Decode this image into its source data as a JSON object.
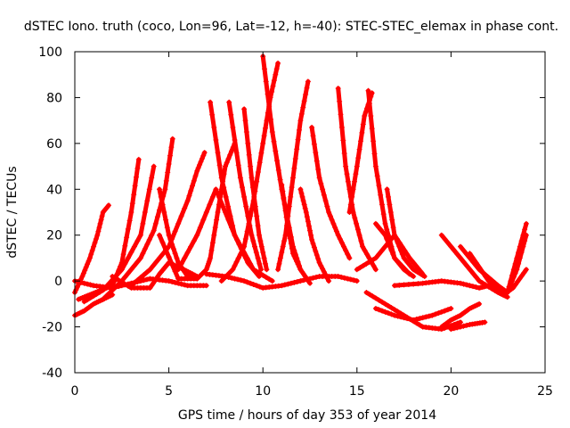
{
  "chart_data": {
    "type": "scatter",
    "title": "dSTEC Iono. truth (coco, Lon=96, Lat=-12, h=-40): STEC-STEC_elemax in phase cont.",
    "xlabel": "GPS time / hours of day 353 of year 2014",
    "ylabel": "dSTEC  / TECUs",
    "xlim": [
      0,
      25
    ],
    "ylim": [
      -40,
      100
    ],
    "x_ticks": [
      0,
      5,
      10,
      15,
      20,
      25
    ],
    "y_ticks": [
      -40,
      -20,
      0,
      20,
      40,
      60,
      80,
      100
    ],
    "grid": false,
    "legend": "none",
    "marker": "plus",
    "series_color": "#ff0000",
    "series": [
      {
        "x": [
          0.0,
          0.4,
          0.8,
          1.2,
          1.5,
          1.8
        ],
        "y": [
          -5,
          2,
          10,
          20,
          30,
          33
        ]
      },
      {
        "x": [
          0.0,
          0.5,
          1.0,
          1.5,
          2.0
        ],
        "y": [
          -15,
          -13,
          -10,
          -8,
          -6
        ]
      },
      {
        "x": [
          0.2,
          0.8,
          1.4,
          2.0,
          2.5,
          3.0,
          3.4
        ],
        "y": [
          -8,
          -6,
          -4,
          -2,
          8,
          30,
          53
        ]
      },
      {
        "x": [
          0.5,
          1.5,
          2.5,
          3.5,
          4.2
        ],
        "y": [
          -9,
          -4,
          5,
          20,
          50
        ]
      },
      {
        "x": [
          1.5,
          2.5,
          3.5,
          4.2,
          4.8,
          5.2
        ],
        "y": [
          -8,
          0,
          10,
          22,
          40,
          62
        ]
      },
      {
        "x": [
          2.0,
          3.0,
          4.0,
          4.5,
          5.0,
          5.8,
          6.5
        ],
        "y": [
          2,
          -3,
          -3,
          3,
          8,
          5,
          2
        ]
      },
      {
        "x": [
          3.0,
          4.0,
          5.0,
          6.0,
          6.5,
          6.9
        ],
        "y": [
          -2,
          5,
          15,
          35,
          48,
          56
        ]
      },
      {
        "x": [
          4.5,
          5.5,
          6.5,
          7.0,
          7.2,
          7.6,
          8.0,
          8.5
        ],
        "y": [
          20,
          1,
          1,
          5,
          10,
          30,
          50,
          60
        ]
      },
      {
        "x": [
          4.5,
          5.0,
          5.5,
          6.0,
          6.5
        ],
        "y": [
          40,
          20,
          8,
          2,
          1
        ]
      },
      {
        "x": [
          5.5,
          6.5,
          7.5,
          8.5,
          9.5,
          10.5
        ],
        "y": [
          5,
          20,
          40,
          20,
          5,
          0
        ]
      },
      {
        "x": [
          7.2,
          7.8,
          8.5,
          9.2,
          9.8
        ],
        "y": [
          78,
          45,
          20,
          8,
          2
        ]
      },
      {
        "x": [
          7.8,
          8.4,
          9.0,
          9.5,
          10.0,
          10.4,
          10.8
        ],
        "y": [
          0,
          5,
          15,
          35,
          60,
          80,
          95
        ]
      },
      {
        "x": [
          8.2,
          8.8,
          9.4,
          9.9
        ],
        "y": [
          78,
          45,
          20,
          5
        ]
      },
      {
        "x": [
          9.0,
          9.4,
          9.8,
          10.2
        ],
        "y": [
          75,
          45,
          20,
          5
        ]
      },
      {
        "x": [
          10.0,
          10.5,
          11.0,
          11.6,
          12.0
        ],
        "y": [
          98,
          65,
          40,
          15,
          5
        ]
      },
      {
        "x": [
          10.8,
          11.2,
          11.6,
          12.0,
          12.4
        ],
        "y": [
          5,
          20,
          45,
          70,
          87
        ]
      },
      {
        "x": [
          11.0,
          11.3,
          11.6,
          12.0,
          12.5
        ],
        "y": [
          42,
          25,
          12,
          5,
          -1
        ]
      },
      {
        "x": [
          12.0,
          12.3,
          12.6,
          13.0,
          13.5
        ],
        "y": [
          40,
          30,
          18,
          8,
          0
        ]
      },
      {
        "x": [
          12.6,
          13.0,
          13.5,
          14.0,
          14.6
        ],
        "y": [
          67,
          45,
          30,
          20,
          10
        ]
      },
      {
        "x": [
          7.0,
          8.0,
          9.0,
          10.0,
          11.0,
          12.0,
          13.0,
          14.0,
          15.0
        ],
        "y": [
          3,
          2,
          0,
          -3,
          -2,
          0,
          2,
          2,
          0
        ]
      },
      {
        "x": [
          14.0,
          14.4,
          14.8,
          15.3,
          16.0
        ],
        "y": [
          84,
          50,
          30,
          15,
          5
        ]
      },
      {
        "x": [
          14.6,
          15.0,
          15.4,
          15.8
        ],
        "y": [
          30,
          50,
          72,
          82
        ]
      },
      {
        "x": [
          15.6,
          16.0,
          16.5,
          17.0,
          17.8
        ],
        "y": [
          83,
          50,
          25,
          10,
          3
        ]
      },
      {
        "x": [
          15.0,
          16.0,
          17.0,
          17.8,
          18.5
        ],
        "y": [
          5,
          10,
          20,
          10,
          3
        ]
      },
      {
        "x": [
          16.0,
          16.5,
          17.0,
          17.5,
          18.0
        ],
        "y": [
          25,
          20,
          10,
          5,
          2
        ]
      },
      {
        "x": [
          16.6,
          17.0,
          17.5,
          18.0,
          18.6
        ],
        "y": [
          40,
          20,
          10,
          5,
          2
        ]
      },
      {
        "x": [
          15.5,
          16.5,
          17.5,
          18.5,
          19.5,
          20.5
        ],
        "y": [
          -5,
          -10,
          -15,
          -20,
          -21,
          -18
        ]
      },
      {
        "x": [
          19.5,
          20.0,
          20.5,
          21.0,
          21.5
        ],
        "y": [
          -20,
          -17,
          -15,
          -12,
          -10
        ]
      },
      {
        "x": [
          20.0,
          21.0,
          21.8
        ],
        "y": [
          -21,
          -19,
          -18
        ]
      },
      {
        "x": [
          16.0,
          17.0,
          18.0,
          19.0,
          20.0
        ],
        "y": [
          -12,
          -15,
          -17,
          -15,
          -12
        ]
      },
      {
        "x": [
          19.5,
          20.5,
          21.5,
          22.5,
          23.0
        ],
        "y": [
          20,
          10,
          0,
          -5,
          -7
        ]
      },
      {
        "x": [
          20.5,
          21.5,
          22.5,
          23.0,
          23.5,
          24.0
        ],
        "y": [
          15,
          5,
          -2,
          -5,
          10,
          25
        ]
      },
      {
        "x": [
          21.0,
          22.0,
          22.8,
          23.3,
          24.0
        ],
        "y": [
          12,
          0,
          -6,
          -3,
          5
        ]
      },
      {
        "x": [
          22.5,
          23.0,
          23.5,
          24.0
        ],
        "y": [
          -3,
          -5,
          5,
          20
        ]
      },
      {
        "x": [
          17.0,
          18.5,
          19.5,
          20.5,
          21.5,
          22.0
        ],
        "y": [
          -2,
          -1,
          0,
          -1,
          -3,
          -2
        ]
      },
      {
        "x": [
          0.0,
          1.0,
          2.0,
          3.0,
          4.0,
          5.0,
          6.0,
          7.0
        ],
        "y": [
          0,
          -2,
          -3,
          -1,
          1,
          0,
          -2,
          -2
        ]
      }
    ]
  }
}
